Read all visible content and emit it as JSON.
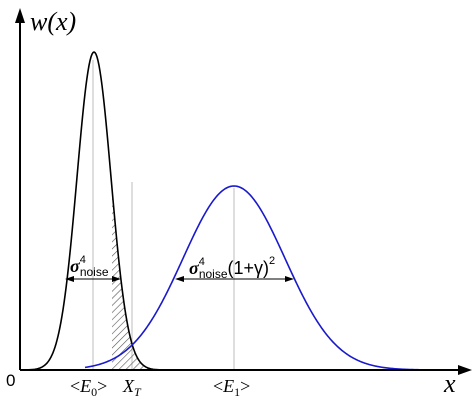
{
  "labels": {
    "y_axis": "w(x)",
    "x_axis": "x",
    "origin": "0",
    "tick_e0": "<E0>",
    "tick_xt": "XT",
    "tick_e1": "<E1>",
    "sigma_left": "σ4noise",
    "sigma_right": "σ4noise(1+γ)2"
  },
  "curves": {
    "noise": {
      "color": "#000000",
      "mean_label": "<E0>",
      "relative_width": 1.0,
      "relative_height": 1.0
    },
    "signal": {
      "color": "#1a1acc",
      "mean_label": "<E1>",
      "relative_width": 1.9,
      "relative_height": 0.58
    }
  },
  "shaded_region": "tail of noise curve beyond XT (hatched)",
  "colors": {
    "axes": "#000000",
    "guides": "#bdbdbd",
    "hatch": "#555555"
  }
}
